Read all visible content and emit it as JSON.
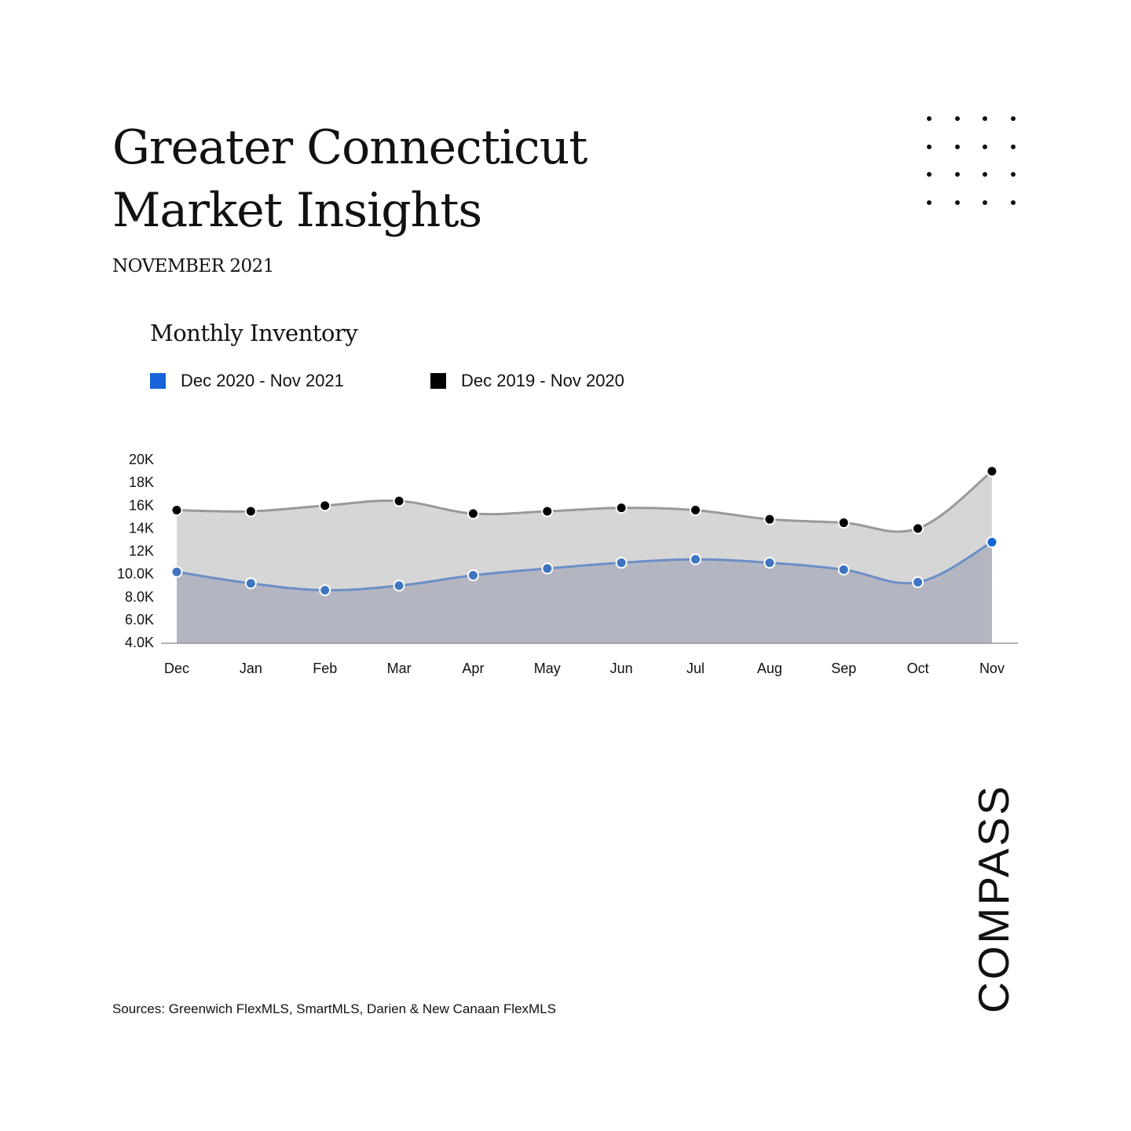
{
  "header": {
    "title_line1": "Greater Connecticut",
    "title_line2": "Market Insights",
    "date": "NOVEMBER 2021"
  },
  "chart_data": {
    "type": "area",
    "title": "Monthly Inventory",
    "categories": [
      "Dec",
      "Jan",
      "Feb",
      "Mar",
      "Apr",
      "May",
      "Jun",
      "Jul",
      "Aug",
      "Sep",
      "Oct",
      "Nov"
    ],
    "series": [
      {
        "name": "Dec 2019 - Nov 2020",
        "color": "#000000",
        "line_color": "#999999",
        "fill_color": "#d6d6d6",
        "values": [
          15500,
          15400,
          15900,
          16300,
          15200,
          15400,
          15700,
          15500,
          14700,
          14400,
          13900,
          18900
        ]
      },
      {
        "name": "Dec 2020 - Nov 2021",
        "color": "#1565d8",
        "line_color": "#6b8fc6",
        "fill_color": "#b3b6c1",
        "marker_color": "#3f74c0",
        "values": [
          10100,
          9100,
          8500,
          8900,
          9800,
          10400,
          10900,
          11200,
          10900,
          10300,
          9200,
          12700
        ]
      }
    ],
    "y_ticks": [
      "20K",
      "18K",
      "16K",
      "14K",
      "12K",
      "10.0K",
      "8.0K",
      "6.0K",
      "4.0K"
    ],
    "y_tick_values": [
      20000,
      18000,
      16000,
      14000,
      12000,
      10000,
      8000,
      6000,
      4000
    ],
    "ylim": [
      4000,
      20000
    ],
    "legend_position": "top-left",
    "grid": false
  },
  "footer": {
    "sources": "Sources: Greenwich FlexMLS, SmartMLS, Darien & New Canaan FlexMLS"
  },
  "brand": {
    "logo_text": "COMPASS",
    "logo_icon": "compass-logo"
  }
}
